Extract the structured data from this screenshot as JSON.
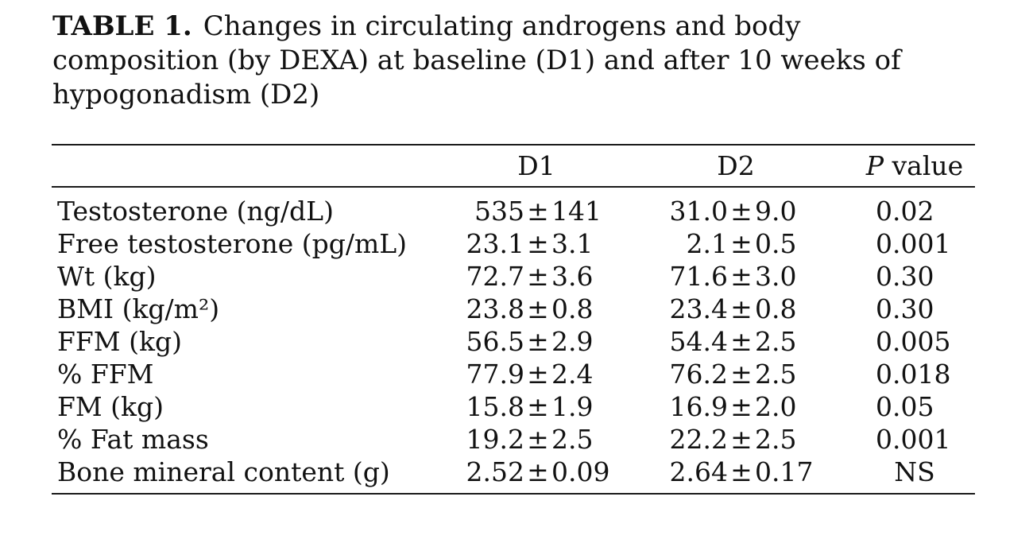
{
  "caption": {
    "label": "TABLE 1.",
    "line1_rest": "Changes in circulating androgens and body",
    "line2": "composition (by DEXA) at baseline (D1) and after 10 weeks of",
    "line3": "hypogonadism (D2)"
  },
  "table": {
    "pm_symbol": "±",
    "columns": {
      "d1": "D1",
      "d2": "D2",
      "p_italic": "P",
      "p_rest": " value"
    },
    "rows": [
      {
        "label": "Testosterone (ng/dL)",
        "d1_value": "535",
        "d1_err": "141",
        "d2_value": "31.0",
        "d2_err": "9.0",
        "p": "0.02"
      },
      {
        "label": "Free testosterone (pg/mL)",
        "d1_value": "23.1",
        "d1_err": "3.1",
        "d2_value": "2.1",
        "d2_err": "0.5",
        "p": "0.001"
      },
      {
        "label": "Wt (kg)",
        "d1_value": "72.7",
        "d1_err": "3.6",
        "d2_value": "71.6",
        "d2_err": "3.0",
        "p": "0.30"
      },
      {
        "label": "BMI (kg/m²)",
        "d1_value": "23.8",
        "d1_err": "0.8",
        "d2_value": "23.4",
        "d2_err": "0.8",
        "p": "0.30"
      },
      {
        "label": "FFM (kg)",
        "d1_value": "56.5",
        "d1_err": "2.9",
        "d2_value": "54.4",
        "d2_err": "2.5",
        "p": "0.005"
      },
      {
        "label": "% FFM",
        "d1_value": "77.9",
        "d1_err": "2.4",
        "d2_value": "76.2",
        "d2_err": "2.5",
        "p": "0.018"
      },
      {
        "label": "FM (kg)",
        "d1_value": "15.8",
        "d1_err": "1.9",
        "d2_value": "16.9",
        "d2_err": "2.0",
        "p": "0.05"
      },
      {
        "label": "% Fat mass",
        "d1_value": "19.2",
        "d1_err": "2.5",
        "d2_value": "22.2",
        "d2_err": "2.5",
        "p": "0.001"
      },
      {
        "label": "Bone mineral content (g)",
        "d1_value": "2.52",
        "d1_err": "0.09",
        "d2_value": "2.64",
        "d2_err": "0.17",
        "p": "NS"
      }
    ]
  }
}
